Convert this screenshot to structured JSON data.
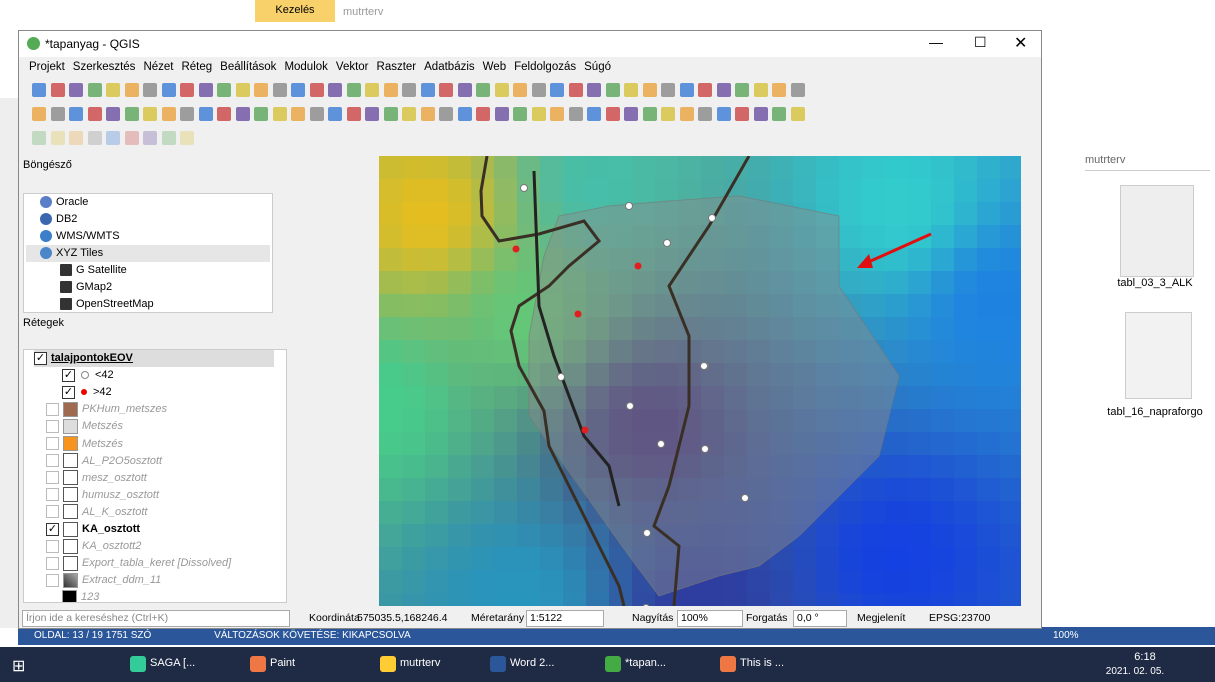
{
  "word": {
    "ribbon_tab": "Kezelés",
    "doc_title": "mutrterv",
    "status": "OLDAL: 13 / 19   1751 SZÓ",
    "track": "VÁLTOZÁSOK KÖVETÉSE: KIKAPCSOLVA",
    "zoom": "100%"
  },
  "qgis": {
    "title": "*tapanyag - QGIS",
    "menu": [
      "Projekt",
      "Szerkesztés",
      "Nézet",
      "Réteg",
      "Beállítások",
      "Modulok",
      "Vektor",
      "Raszter",
      "Adatbázis",
      "Web",
      "Feldolgozás",
      "Súgó"
    ],
    "browser": {
      "title": "Böngésző",
      "items": [
        "Oracle",
        "DB2",
        "WMS/WMTS",
        "XYZ Tiles",
        "G Satellite",
        "GMap2",
        "OpenStreetMap"
      ]
    },
    "layers": {
      "title": "Rétegek",
      "items": [
        {
          "label": "talajpontokEOV",
          "checked": true
        },
        {
          "label": "<42",
          "checked": true
        },
        {
          "label": ">42",
          "checked": true
        },
        {
          "label": "PKHum_metszes",
          "checked": false
        },
        {
          "label": "Metszés",
          "checked": false
        },
        {
          "label": "Metszés",
          "checked": false
        },
        {
          "label": "AL_P2O5osztott",
          "checked": false
        },
        {
          "label": "mesz_osztott",
          "checked": false
        },
        {
          "label": "humusz_osztott",
          "checked": false
        },
        {
          "label": "AL_K_osztott",
          "checked": false
        },
        {
          "label": "KA_osztott",
          "checked": true
        },
        {
          "label": "KA_osztott2",
          "checked": false
        },
        {
          "label": "Export_tabla_keret [Dissolved]",
          "checked": false
        },
        {
          "label": "Extract_ddm_11",
          "checked": false
        },
        {
          "label": "123",
          "checked": false
        }
      ]
    },
    "status": {
      "search": "Írjon ide a kereséshez (Ctrl+K)",
      "coord_label": "Koordináta",
      "coord": "575035.5,168246.4",
      "scale_label": "Méretarány",
      "scale": "1:5122",
      "zoom_label": "Nagyítás",
      "zoom": "100%",
      "rotation_label": "Forgatás",
      "rotation": "0,0 °",
      "render": "Megjelenít",
      "crs": "EPSG:23700"
    }
  },
  "explorer": {
    "search": "mutrterv",
    "files": [
      "tabl_03_3_ALK",
      "tabl_16_napraforgo"
    ]
  },
  "taskbar": {
    "apps": [
      "SAGA [...",
      "Paint",
      "mutrterv",
      "Word 2...",
      "*tapan...",
      "This is ..."
    ],
    "time": "6:18",
    "date": "2021. 02. 05."
  }
}
